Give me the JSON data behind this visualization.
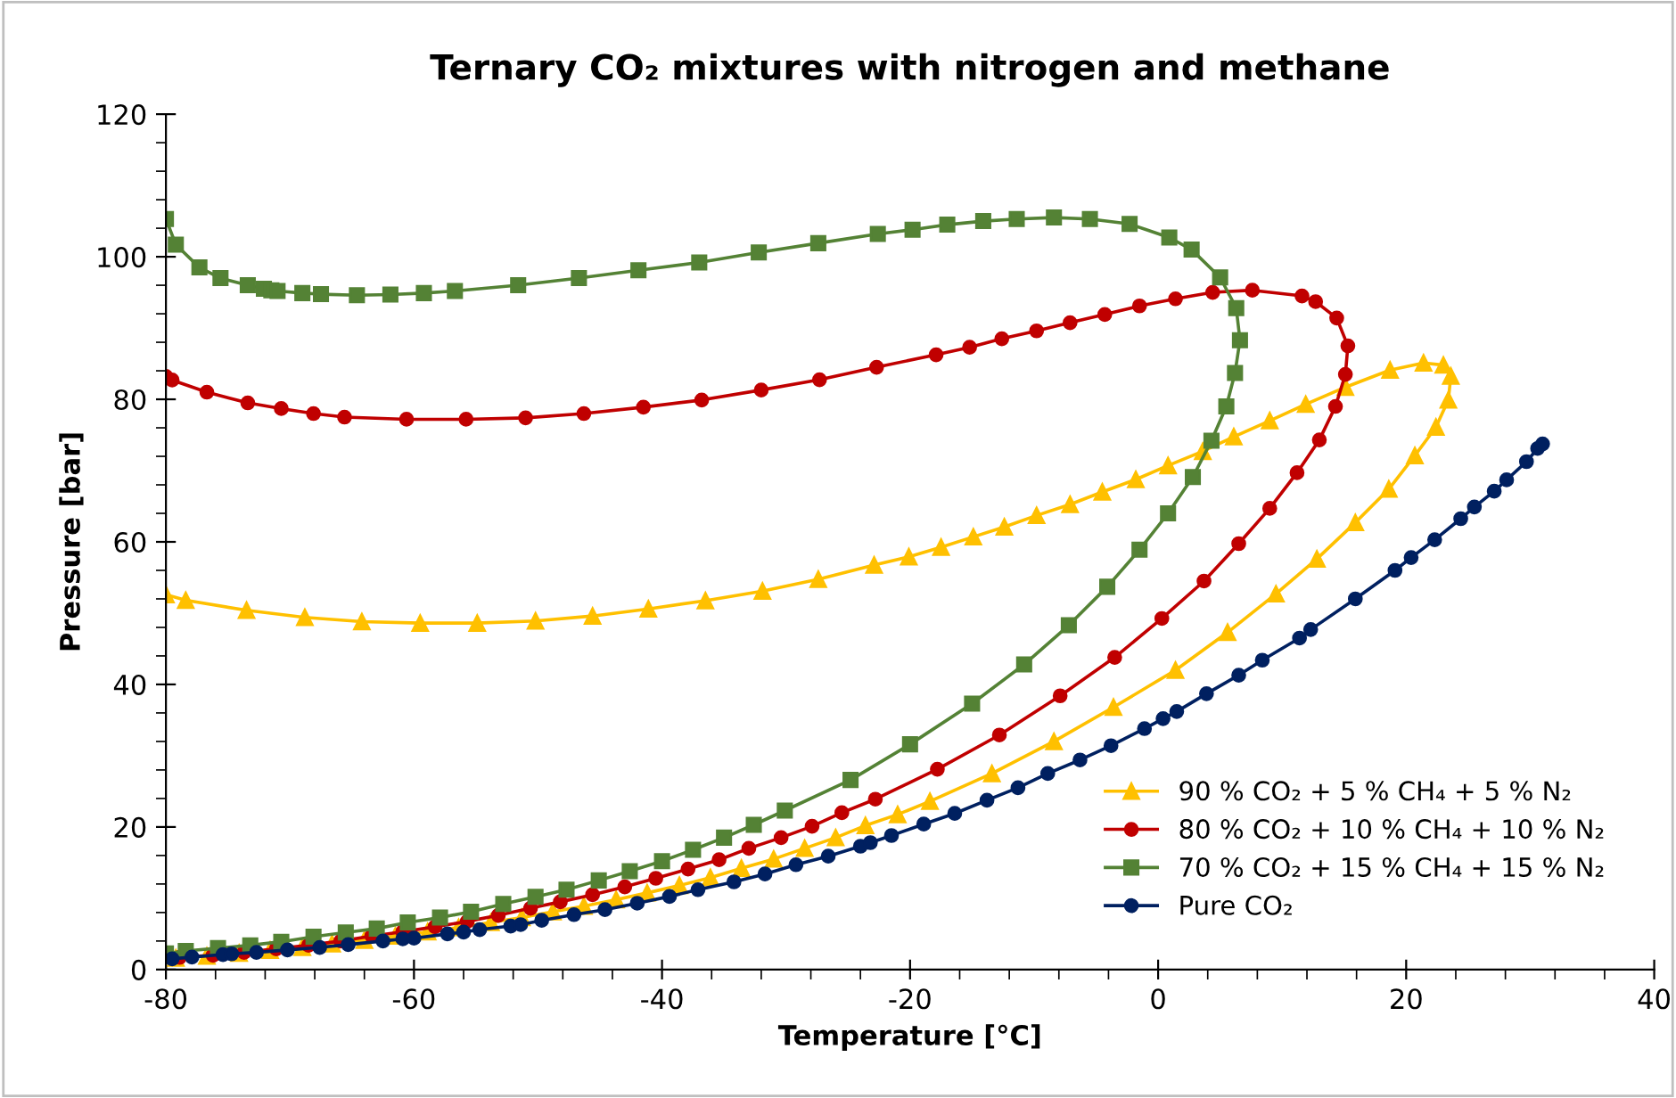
{
  "chart_data": {
    "type": "line",
    "title": "Ternary CO₂ mixtures with nitrogen and methane",
    "xlabel": "Temperature [°C]",
    "ylabel": "Pressure [bar]",
    "xlim": [
      -80,
      40
    ],
    "xticks": [
      -80,
      -60,
      -40,
      -20,
      0,
      20,
      40
    ],
    "ylim": [
      0,
      120
    ],
    "yticks": [
      0,
      20,
      40,
      60,
      80,
      100,
      120
    ],
    "grid": false,
    "legend": "bottom right",
    "line_style": "solid",
    "series": [
      {
        "name": "90 % CO₂ + 5 % CH₄ + 5 % N₂",
        "color": "#ffc000",
        "marker": "triangle",
        "x": [
          -80,
          -78.4,
          -73.5,
          -68.8,
          -64.2,
          -59.5,
          -54.9,
          -50.2,
          -45.6,
          -41.1,
          -36.5,
          -31.9,
          -27.4,
          -22.9,
          -20.1,
          -17.5,
          -14.9,
          -12.4,
          -9.8,
          -7.1,
          -4.5,
          -1.8,
          0.8,
          3.6,
          6.1,
          9.0,
          11.9,
          15.1,
          18.7,
          21.4,
          23.0,
          23.6,
          23.4,
          22.4,
          20.7,
          18.6,
          15.9,
          12.8,
          9.5,
          5.6,
          1.4,
          -3.6,
          -8.4,
          -13.4,
          -18.4,
          -21.0,
          -23.6,
          -26.0,
          -28.5,
          -31.0,
          -33.6,
          -36.1,
          -38.6,
          -41.2,
          -43.7,
          -46.3,
          -48.8,
          -51.3,
          -53.8,
          -56.4,
          -58.9,
          -61.5,
          -64.0,
          -66.6,
          -69.0,
          -71.6,
          -74.1,
          -76.7,
          -79.2
        ],
        "values": [
          52.6,
          51.8,
          50.4,
          49.4,
          48.8,
          48.6,
          48.6,
          48.9,
          49.6,
          50.6,
          51.75,
          53.1,
          54.75,
          56.75,
          57.9,
          59.25,
          60.7,
          62.1,
          63.7,
          65.25,
          67,
          68.75,
          70.7,
          72.7,
          74.75,
          77,
          79.3,
          81.7,
          84.1,
          85.1,
          84.8,
          83.25,
          79.9,
          76.1,
          72.1,
          67.4,
          62.7,
          57.6,
          52.7,
          47.3,
          42,
          36.8,
          32,
          27.5,
          23.6,
          21.75,
          20.2,
          18.5,
          17,
          15.5,
          14.2,
          12.9,
          11.8,
          10.75,
          9.8,
          8.9,
          8.1,
          7.3,
          6.6,
          5.9,
          5.3,
          4.7,
          4.1,
          3.6,
          3.1,
          2.7,
          2.3,
          1.9,
          1.6
        ]
      },
      {
        "name": "80 % CO₂ + 10 % CH₄ + 10 % N₂",
        "color": "#c00000",
        "marker": "circle",
        "x": [
          -80,
          -79.5,
          -76.7,
          -73.4,
          -70.7,
          -68.1,
          -65.6,
          -60.6,
          -55.8,
          -51.0,
          -46.3,
          -41.5,
          -36.8,
          -32.0,
          -27.3,
          -22.7,
          -17.9,
          -15.2,
          -12.6,
          -9.8,
          -7.1,
          -4.3,
          -1.5,
          1.4,
          4.4,
          7.6,
          11.6,
          12.7,
          14.4,
          15.3,
          15.1,
          14.3,
          13.0,
          11.2,
          9.0,
          6.5,
          3.7,
          0.3,
          -3.5,
          -7.9,
          -12.8,
          -17.8,
          -22.8,
          -25.5,
          -27.9,
          -30.4,
          -33.0,
          -35.4,
          -37.9,
          -40.5,
          -43.0,
          -45.6,
          -48.2,
          -50.6,
          -53.2,
          -55.7,
          -58.3,
          -60.9,
          -63.4,
          -65.9,
          -68.5,
          -71.1,
          -73.7,
          -76.2,
          -78.9
        ],
        "values": [
          83.2,
          82.7,
          81,
          79.5,
          78.7,
          78,
          77.5,
          77.2,
          77.2,
          77.4,
          78,
          78.9,
          79.9,
          81.3,
          82.75,
          84.5,
          86.25,
          87.3,
          88.5,
          89.6,
          90.75,
          91.9,
          93.1,
          94.1,
          95,
          95.3,
          94.5,
          93.7,
          91.4,
          87.5,
          83.5,
          79,
          74.3,
          69.7,
          64.7,
          59.75,
          54.5,
          49.25,
          43.8,
          38.4,
          32.9,
          28.1,
          23.9,
          22,
          20.1,
          18.5,
          17,
          15.4,
          14.1,
          12.8,
          11.6,
          10.5,
          9.5,
          8.6,
          7.6,
          6.75,
          6,
          5.3,
          4.7,
          4,
          3.4,
          2.9,
          2.4,
          2,
          1.7
        ]
      },
      {
        "name": "70 % CO₂ + 15 % CH₄ + 15 % N₂",
        "color": "#548235",
        "marker": "square",
        "x": [
          -80,
          -79.2,
          -77.3,
          -75.6,
          -73.4,
          -72.1,
          -71.5,
          -71,
          -69.0,
          -67.5,
          -64.6,
          -61.9,
          -59.2,
          -56.7,
          -51.6,
          -46.7,
          -41.9,
          -37.0,
          -32.2,
          -27.4,
          -22.6,
          -19.8,
          -17.0,
          -14.1,
          -11.4,
          -8.4,
          -5.5,
          -2.3,
          0.9,
          2.7,
          5.0,
          6.3,
          6.6,
          6.2,
          5.5,
          4.3,
          2.8,
          0.8,
          -1.5,
          -4.1,
          -7.2,
          -10.8,
          -15.0,
          -20.0,
          -24.8,
          -30.1,
          -32.6,
          -35.0,
          -37.5,
          -40.0,
          -42.6,
          -45.1,
          -47.7,
          -50.2,
          -52.8,
          -55.4,
          -57.9,
          -60.5,
          -63.0,
          -65.5,
          -68.1,
          -70.7,
          -73.2,
          -75.8,
          -78.4,
          -80
        ],
        "values": [
          105.3,
          101.7,
          98.5,
          97,
          96,
          95.5,
          95.3,
          95.2,
          94.9,
          94.75,
          94.6,
          94.7,
          94.9,
          95.2,
          96,
          97,
          98.1,
          99.2,
          100.6,
          101.9,
          103.2,
          103.8,
          104.5,
          105,
          105.3,
          105.5,
          105.3,
          104.6,
          102.7,
          101,
          97.1,
          92.8,
          88.3,
          83.7,
          79,
          74.2,
          69.1,
          64,
          58.9,
          53.7,
          48.3,
          42.8,
          37.3,
          31.6,
          26.6,
          22.3,
          20.3,
          18.5,
          16.8,
          15.2,
          13.8,
          12.5,
          11.2,
          10.2,
          9.2,
          8.1,
          7.3,
          6.6,
          5.75,
          5.2,
          4.6,
          3.9,
          3.4,
          3.0,
          2.6,
          2.25
        ]
      },
      {
        "name": "Pure CO₂",
        "color": "#002060",
        "marker": "circle",
        "x": [
          -79.5,
          -77.9,
          -75.4,
          -74.7,
          -72.7,
          -70.2,
          -67.6,
          -65.3,
          -62.5,
          -60.9,
          -60.0,
          -57.3,
          -56.0,
          -54.7,
          -52.2,
          -51.4,
          -49.7,
          -47.1,
          -44.6,
          -42.0,
          -39.4,
          -37.1,
          -34.2,
          -31.7,
          -29.2,
          -26.6,
          -24.0,
          -23.2,
          -21.5,
          -18.9,
          -16.4,
          -13.8,
          -11.3,
          -8.9,
          -6.3,
          -3.8,
          -1.1,
          0.4,
          1.5,
          3.9,
          6.5,
          8.4,
          11.4,
          12.3,
          15.9,
          19.1,
          20.4,
          22.3,
          24.4,
          25.5,
          27.1,
          28.1,
          29.7,
          30.6,
          31.0
        ],
        "values": [
          1.5,
          1.75,
          2.1,
          2.2,
          2.4,
          2.75,
          3.1,
          3.5,
          4,
          4.3,
          4.4,
          5,
          5.25,
          5.6,
          6.1,
          6.3,
          6.9,
          7.7,
          8.4,
          9.3,
          10.25,
          11.2,
          12.3,
          13.4,
          14.7,
          15.9,
          17.3,
          17.8,
          18.8,
          20.4,
          21.9,
          23.75,
          25.5,
          27.5,
          29.4,
          31.4,
          33.8,
          35.2,
          36.2,
          38.7,
          41.3,
          43.4,
          46.5,
          47.7,
          52,
          56,
          57.8,
          60.3,
          63.25,
          64.9,
          67.1,
          68.7,
          71.25,
          73.1,
          73.75
        ]
      }
    ]
  }
}
